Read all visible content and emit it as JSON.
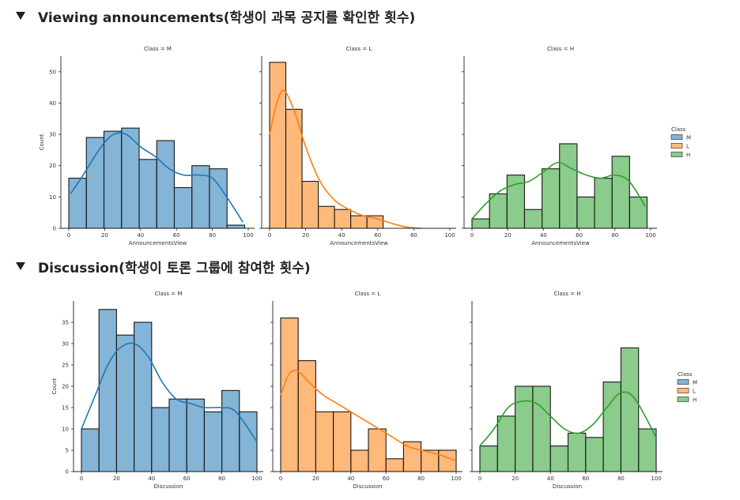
{
  "sections": [
    {
      "title": "Viewing announcements(학생이 과목 공지를 확인한 횟수)"
    },
    {
      "title": "Discussion(학생이 토론 그룹에 참여한 횟수)"
    }
  ],
  "legend": {
    "title": "Class",
    "items": [
      {
        "label": "M",
        "color": "#1f77b4"
      },
      {
        "label": "L",
        "color": "#ff7f0e"
      },
      {
        "label": "H",
        "color": "#2ca02c"
      }
    ]
  },
  "chart_data": [
    {
      "type": "bar",
      "variable": "AnnouncementsView",
      "xlabel": "AnnouncementsView",
      "ylabel": "Count",
      "xlim": [
        0,
        100
      ],
      "xticks": [
        0,
        20,
        40,
        60,
        80,
        100
      ],
      "ylim": [
        0,
        55
      ],
      "yticks": [
        0,
        10,
        20,
        30,
        40,
        50
      ],
      "panels": [
        {
          "title": "Class = M",
          "class": "M",
          "color": "#1f77b4",
          "bins": [
            0,
            9.8,
            19.6,
            29.4,
            39.2,
            49,
            58.8,
            68.6,
            78.4,
            88.2,
            98
          ],
          "counts": [
            16,
            29,
            31,
            32,
            22,
            28,
            13,
            20,
            19,
            1
          ],
          "kde": [
            [
              1,
              11
            ],
            [
              8,
              17
            ],
            [
              18,
              26
            ],
            [
              25,
              30
            ],
            [
              32,
              30
            ],
            [
              40,
              26
            ],
            [
              48,
              23
            ],
            [
              56,
              19
            ],
            [
              64,
              17
            ],
            [
              72,
              17
            ],
            [
              80,
              16
            ],
            [
              88,
              10
            ],
            [
              97,
              2
            ]
          ]
        },
        {
          "title": "Class = L",
          "class": "L",
          "color": "#ff7f0e",
          "bins": [
            0,
            9,
            18,
            27,
            36,
            45,
            54,
            63
          ],
          "counts": [
            53,
            38,
            15,
            7,
            6,
            4,
            4
          ],
          "kde": [
            [
              0,
              30
            ],
            [
              4,
              40
            ],
            [
              8,
              44
            ],
            [
              14,
              37
            ],
            [
              20,
              26
            ],
            [
              28,
              15
            ],
            [
              36,
              9
            ],
            [
              44,
              6
            ],
            [
              52,
              4
            ],
            [
              60,
              3
            ],
            [
              68,
              1.5
            ],
            [
              76,
              0.4
            ],
            [
              84,
              0
            ]
          ]
        },
        {
          "title": "Class = H",
          "class": "H",
          "color": "#2ca02c",
          "bins": [
            0,
            9.8,
            19.6,
            29.4,
            39.2,
            49,
            58.8,
            68.6,
            78.4,
            88.2,
            98
          ],
          "counts": [
            3,
            11,
            17,
            6,
            19,
            27,
            10,
            16,
            23,
            10
          ],
          "kde": [
            [
              0,
              3
            ],
            [
              8,
              8
            ],
            [
              16,
              12
            ],
            [
              24,
              14
            ],
            [
              32,
              15
            ],
            [
              40,
              18
            ],
            [
              48,
              21
            ],
            [
              56,
              19
            ],
            [
              64,
              17
            ],
            [
              72,
              16
            ],
            [
              80,
              17
            ],
            [
              88,
              15
            ],
            [
              97,
              7
            ]
          ]
        }
      ]
    },
    {
      "type": "bar",
      "variable": "Discussion",
      "xlabel": "Discussion",
      "ylabel": "Count",
      "xlim": [
        0,
        100
      ],
      "xticks": [
        0,
        20,
        40,
        60,
        80,
        100
      ],
      "ylim": [
        0,
        40
      ],
      "yticks": [
        0,
        5,
        10,
        15,
        20,
        25,
        30,
        35
      ],
      "panels": [
        {
          "title": "Class = M",
          "class": "M",
          "color": "#1f77b4",
          "bins": [
            0,
            10,
            20,
            30,
            40,
            50,
            60,
            70,
            80,
            90,
            100
          ],
          "counts": [
            10,
            38,
            32,
            35,
            15,
            17,
            17,
            14,
            19,
            14
          ],
          "kde": [
            [
              0,
              10
            ],
            [
              8,
              18
            ],
            [
              15,
              25
            ],
            [
              22,
              29
            ],
            [
              30,
              30
            ],
            [
              38,
              27
            ],
            [
              46,
              21
            ],
            [
              54,
              17
            ],
            [
              62,
              16
            ],
            [
              70,
              15
            ],
            [
              80,
              15
            ],
            [
              88,
              14
            ],
            [
              100,
              7
            ]
          ]
        },
        {
          "title": "Class = L",
          "class": "L",
          "color": "#ff7f0e",
          "bins": [
            0,
            10,
            20,
            30,
            40,
            50,
            60,
            70,
            80,
            90,
            100
          ],
          "counts": [
            36,
            26,
            14,
            14,
            5,
            10,
            3,
            7,
            5,
            5
          ],
          "kde": [
            [
              0,
              18
            ],
            [
              5,
              23
            ],
            [
              10,
              23.5
            ],
            [
              16,
              21
            ],
            [
              24,
              18
            ],
            [
              32,
              16
            ],
            [
              40,
              14
            ],
            [
              48,
              12
            ],
            [
              56,
              10
            ],
            [
              64,
              8
            ],
            [
              72,
              6
            ],
            [
              80,
              5
            ],
            [
              90,
              4
            ],
            [
              100,
              2.5
            ]
          ]
        },
        {
          "title": "Class = H",
          "class": "H",
          "color": "#2ca02c",
          "bins": [
            0,
            10,
            20,
            30,
            40,
            50,
            60,
            70,
            80,
            90,
            100
          ],
          "counts": [
            6,
            13,
            20,
            20,
            6,
            9,
            8,
            21,
            29,
            10
          ],
          "kde": [
            [
              0,
              6
            ],
            [
              8,
              10
            ],
            [
              16,
              15
            ],
            [
              24,
              16.5
            ],
            [
              32,
              16
            ],
            [
              40,
              13
            ],
            [
              48,
              10
            ],
            [
              56,
              9
            ],
            [
              64,
              11
            ],
            [
              72,
              15
            ],
            [
              80,
              18.5
            ],
            [
              88,
              17
            ],
            [
              100,
              8
            ]
          ]
        }
      ]
    }
  ]
}
